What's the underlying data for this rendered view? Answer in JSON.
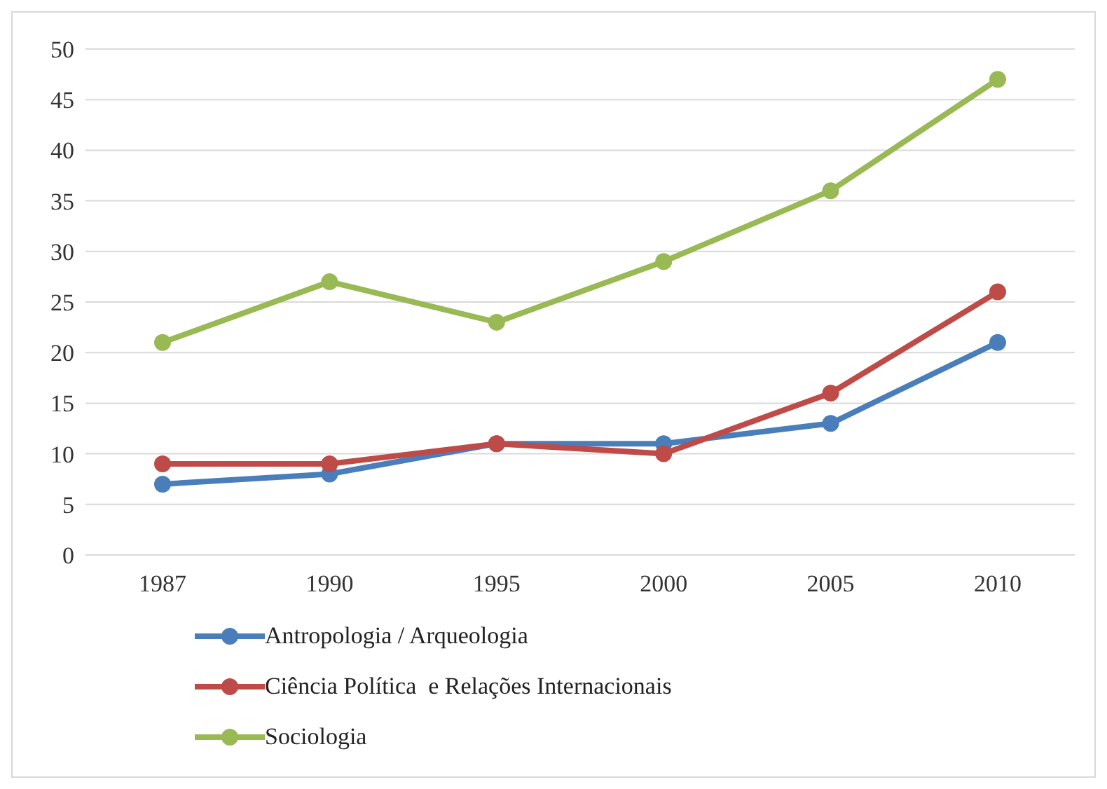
{
  "chart_data": {
    "type": "line",
    "categories": [
      "1987",
      "1990",
      "1995",
      "2000",
      "2005",
      "2010"
    ],
    "series": [
      {
        "name": "Antropologia / Arqueologia",
        "color": "#4a7ebb",
        "values": [
          7,
          8,
          11,
          11,
          13,
          21
        ]
      },
      {
        "name": "Ciência Política  e Relações Internacionais",
        "color": "#be4b48",
        "values": [
          9,
          9,
          11,
          10,
          16,
          26
        ]
      },
      {
        "name": "Sociologia",
        "color": "#98b954",
        "values": [
          21,
          27,
          23,
          29,
          36,
          47
        ]
      }
    ],
    "ylim": [
      0,
      50
    ],
    "yticks": [
      0,
      5,
      10,
      15,
      20,
      25,
      30,
      35,
      40,
      45,
      50
    ],
    "grid": "y",
    "legend": "bottom",
    "marker": "circle",
    "line_style": "solid"
  }
}
